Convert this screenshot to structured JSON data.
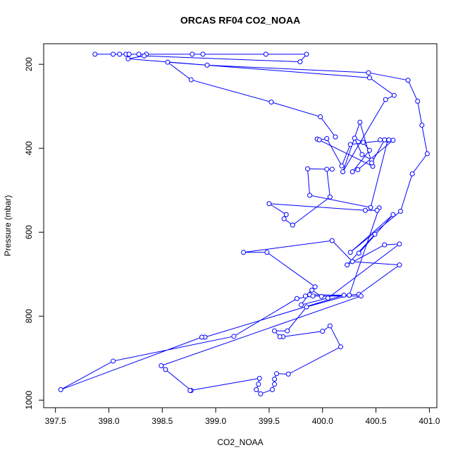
{
  "chart_data": {
    "type": "line",
    "title": "ORCAS RF04 CO2_NOAA",
    "xlabel": "CO2_NOAA",
    "ylabel": "Pressure (mbar)",
    "xlim": [
      397.39,
      401.07
    ],
    "ylim": [
      1018,
      151
    ],
    "xticks": [
      397.5,
      {
        "value": 398,
        "label": "398.0"
      },
      398.5,
      {
        "value": 399,
        "label": "399.0"
      },
      399.5,
      {
        "value": 400,
        "label": "400.0"
      },
      400.5,
      {
        "value": 401,
        "label": "401.0"
      }
    ],
    "yticks": [
      200,
      400,
      600,
      800,
      1000
    ],
    "series": [
      {
        "color": "#0000ff",
        "x": [
          397.87,
          398.04,
          398.1,
          398.16,
          398.19,
          398.28,
          398.35,
          398.78,
          398.88,
          399.47,
          399.85,
          399.79,
          398.33,
          398.18,
          398.92,
          400.43,
          400.8,
          400.89,
          400.93,
          400.98,
          400.84,
          400.73,
          400.26,
          400.66,
          400.34,
          400.49,
          400.23,
          400.58,
          400.72,
          400.05,
          399.8,
          399.9,
          399.99,
          400.34,
          400.72,
          400.28,
          400.09,
          399.26,
          399.48,
          399.93,
          399.84,
          399.88,
          400.2,
          398.9,
          398.87,
          397.55,
          398.04,
          399.17,
          399.76,
          399.91,
          400.36,
          398.49,
          398.53,
          398.77,
          398.76,
          399.41,
          399.4,
          399.38,
          399.42,
          399.53,
          399.55,
          399.55,
          399.57,
          399.68,
          400.17,
          400.07,
          400.0,
          399.63,
          399.6,
          399.55,
          399.67,
          399.85,
          400.25,
          400.53,
          400.51,
          400.4,
          399.5,
          399.66,
          399.64,
          399.72,
          400.07,
          400.04,
          400.09,
          399.86,
          399.88,
          400.45,
          400.61,
          400.54,
          400.66,
          400.33,
          400.28,
          400.44,
          400.38,
          400.3,
          400.37,
          400.46,
          400.47,
          399.95,
          399.97,
          400.04,
          400.18,
          400.26,
          400.62,
          400.58,
          400.46,
          400.35,
          400.19,
          400.59,
          400.67,
          400.44,
          398.55,
          398.77,
          399.52,
          399.98,
          400.12
        ],
        "y": [
          176,
          176,
          176,
          176,
          176,
          176,
          176,
          176,
          176,
          176,
          176,
          194,
          180,
          187,
          202,
          220,
          238,
          288,
          345,
          413,
          461,
          550,
          648,
          558,
          650,
          605,
          678,
          630,
          628,
          757,
          773,
          738,
          753,
          748,
          678,
          670,
          620,
          648,
          648,
          730,
          752,
          749,
          750,
          850,
          850,
          975,
          907,
          848,
          758,
          752,
          752,
          918,
          927,
          977,
          977,
          948,
          962,
          975,
          985,
          975,
          962,
          950,
          937,
          938,
          873,
          823,
          836,
          849,
          849,
          835,
          835,
          778,
          750,
          542,
          548,
          548,
          532,
          558,
          568,
          583,
          516,
          450,
          450,
          449,
          512,
          541,
          381,
          380,
          381,
          451,
          456,
          405,
          386,
          376,
          415,
          428,
          443,
          378,
          380,
          377,
          442,
          391,
          380,
          380,
          435,
          338,
          456,
          284,
          274,
          232,
          195,
          237,
          290,
          325,
          373
        ]
      }
    ]
  }
}
